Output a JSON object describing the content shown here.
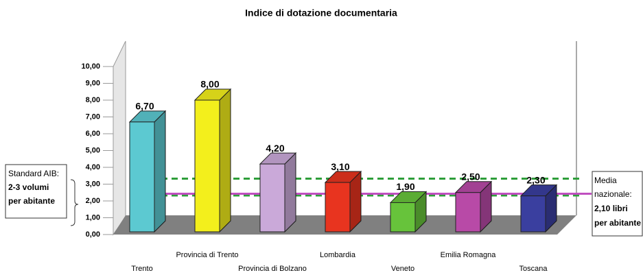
{
  "chart_data": {
    "type": "bar3d",
    "title": "Indice di dotazione documentaria",
    "categories": [
      "Trento",
      "Provincia di Trento",
      "Provincia di Bolzano",
      "Lombardia",
      "Veneto",
      "Emilia Romagna",
      "Toscana"
    ],
    "values": [
      6.7,
      8.0,
      4.2,
      3.1,
      1.9,
      2.5,
      2.3
    ],
    "value_labels": [
      "6,70",
      "8,00",
      "4,20",
      "3,10",
      "1,90",
      "2,50",
      "2,30"
    ],
    "colors": [
      "#5cc9d1",
      "#f3ef1c",
      "#caa9d9",
      "#e8341f",
      "#67c33b",
      "#b84aa7",
      "#3a3f9f"
    ],
    "ylim": [
      0,
      10
    ],
    "yticks": [
      {
        "value": 0,
        "label": "0,00"
      },
      {
        "value": 1,
        "label": "1,00"
      },
      {
        "value": 2,
        "label": "2,00"
      },
      {
        "value": 3,
        "label": "3,00"
      },
      {
        "value": 4,
        "label": "4,00"
      },
      {
        "value": 5,
        "label": "5,00"
      },
      {
        "value": 6,
        "label": "6,00"
      },
      {
        "value": 7,
        "label": "7,00"
      },
      {
        "value": 8,
        "label": "8,00"
      },
      {
        "value": 9,
        "label": "9,00"
      },
      {
        "value": 10,
        "label": "10,00"
      }
    ],
    "reference_lines": [
      {
        "value": 3,
        "color": "#2e9e3a",
        "style": "dashed"
      },
      {
        "value": 2,
        "color": "#2e9e3a",
        "style": "dashed"
      },
      {
        "value": 2.1,
        "color": "#c04fc0",
        "style": "solid"
      }
    ],
    "annotations": {
      "standard": [
        "Standard AIB:",
        "2-3 volumi",
        "per abitante"
      ],
      "media": [
        "Media",
        "nazionale:",
        "2,10 libri",
        "per abitante"
      ]
    }
  }
}
